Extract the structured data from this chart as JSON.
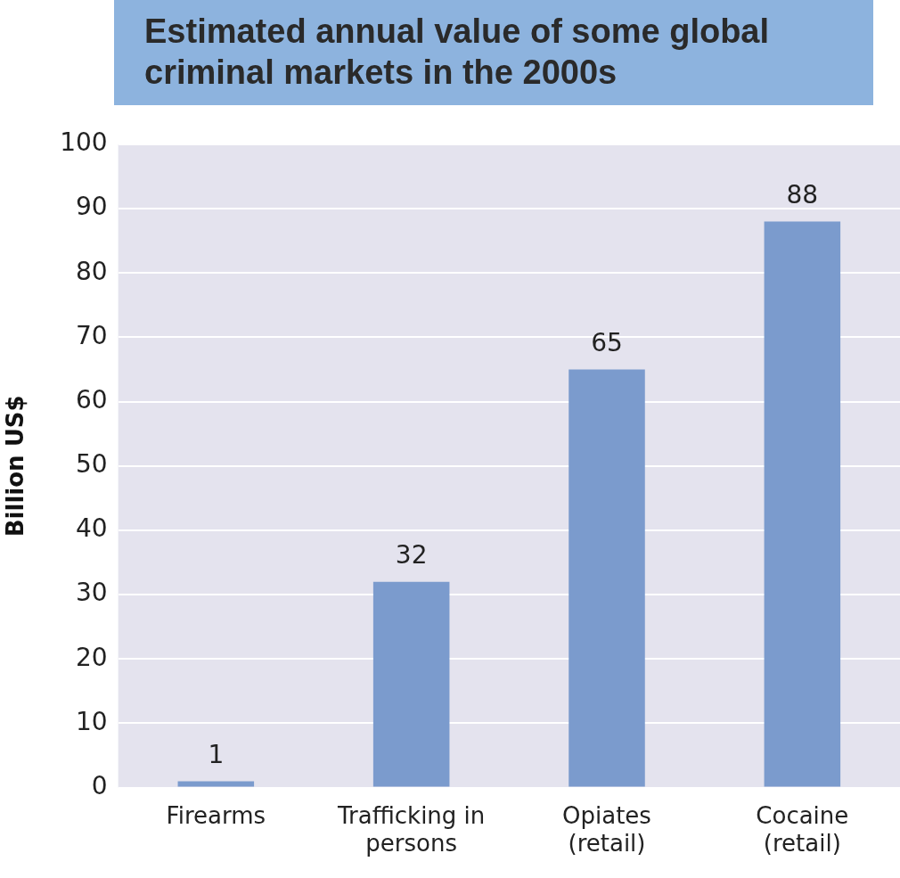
{
  "chart_data": {
    "type": "bar",
    "title": "Estimated annual value of some global criminal markets in the 2000s",
    "ylabel": "Billion US$",
    "categories": [
      "Firearms",
      "Trafficking in persons",
      "Opiates (retail)",
      "Cocaine (retail)"
    ],
    "values": [
      1,
      32,
      65,
      88
    ],
    "color": "#7b9bcd",
    "ylim": [
      0,
      100
    ],
    "yticks": [
      0,
      10,
      20,
      30,
      40,
      50,
      60,
      70,
      80,
      90,
      100
    ],
    "grid": "y",
    "legend": false,
    "data_labels": true
  }
}
